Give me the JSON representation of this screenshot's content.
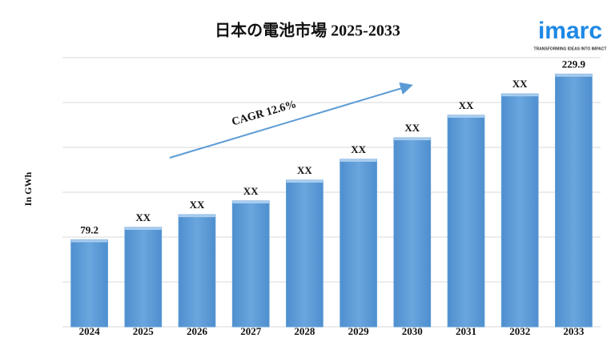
{
  "chart_data": {
    "type": "bar",
    "title": "日本の電池市場 2025-2033",
    "y_label": "In GWh",
    "annotation": "CAGR 12.6%",
    "logo": {
      "name": "imarc",
      "tagline": "TRANSFORMING IDEAS INTO IMPACT"
    },
    "categories": [
      "2024",
      "2025",
      "2026",
      "2027",
      "2028",
      "2029",
      "2030",
      "2031",
      "2032",
      "2033"
    ],
    "values": [
      79.2,
      90.4,
      102,
      114.5,
      133.4,
      152.4,
      172,
      192.5,
      212,
      229.9
    ],
    "value_labels": [
      "79.2",
      "XX",
      "XX",
      "XX",
      "XX",
      "XX",
      "XX",
      "XX",
      "XX",
      "229.9"
    ],
    "color": "#5b9bd5",
    "ylim": [
      0,
      245
    ]
  }
}
